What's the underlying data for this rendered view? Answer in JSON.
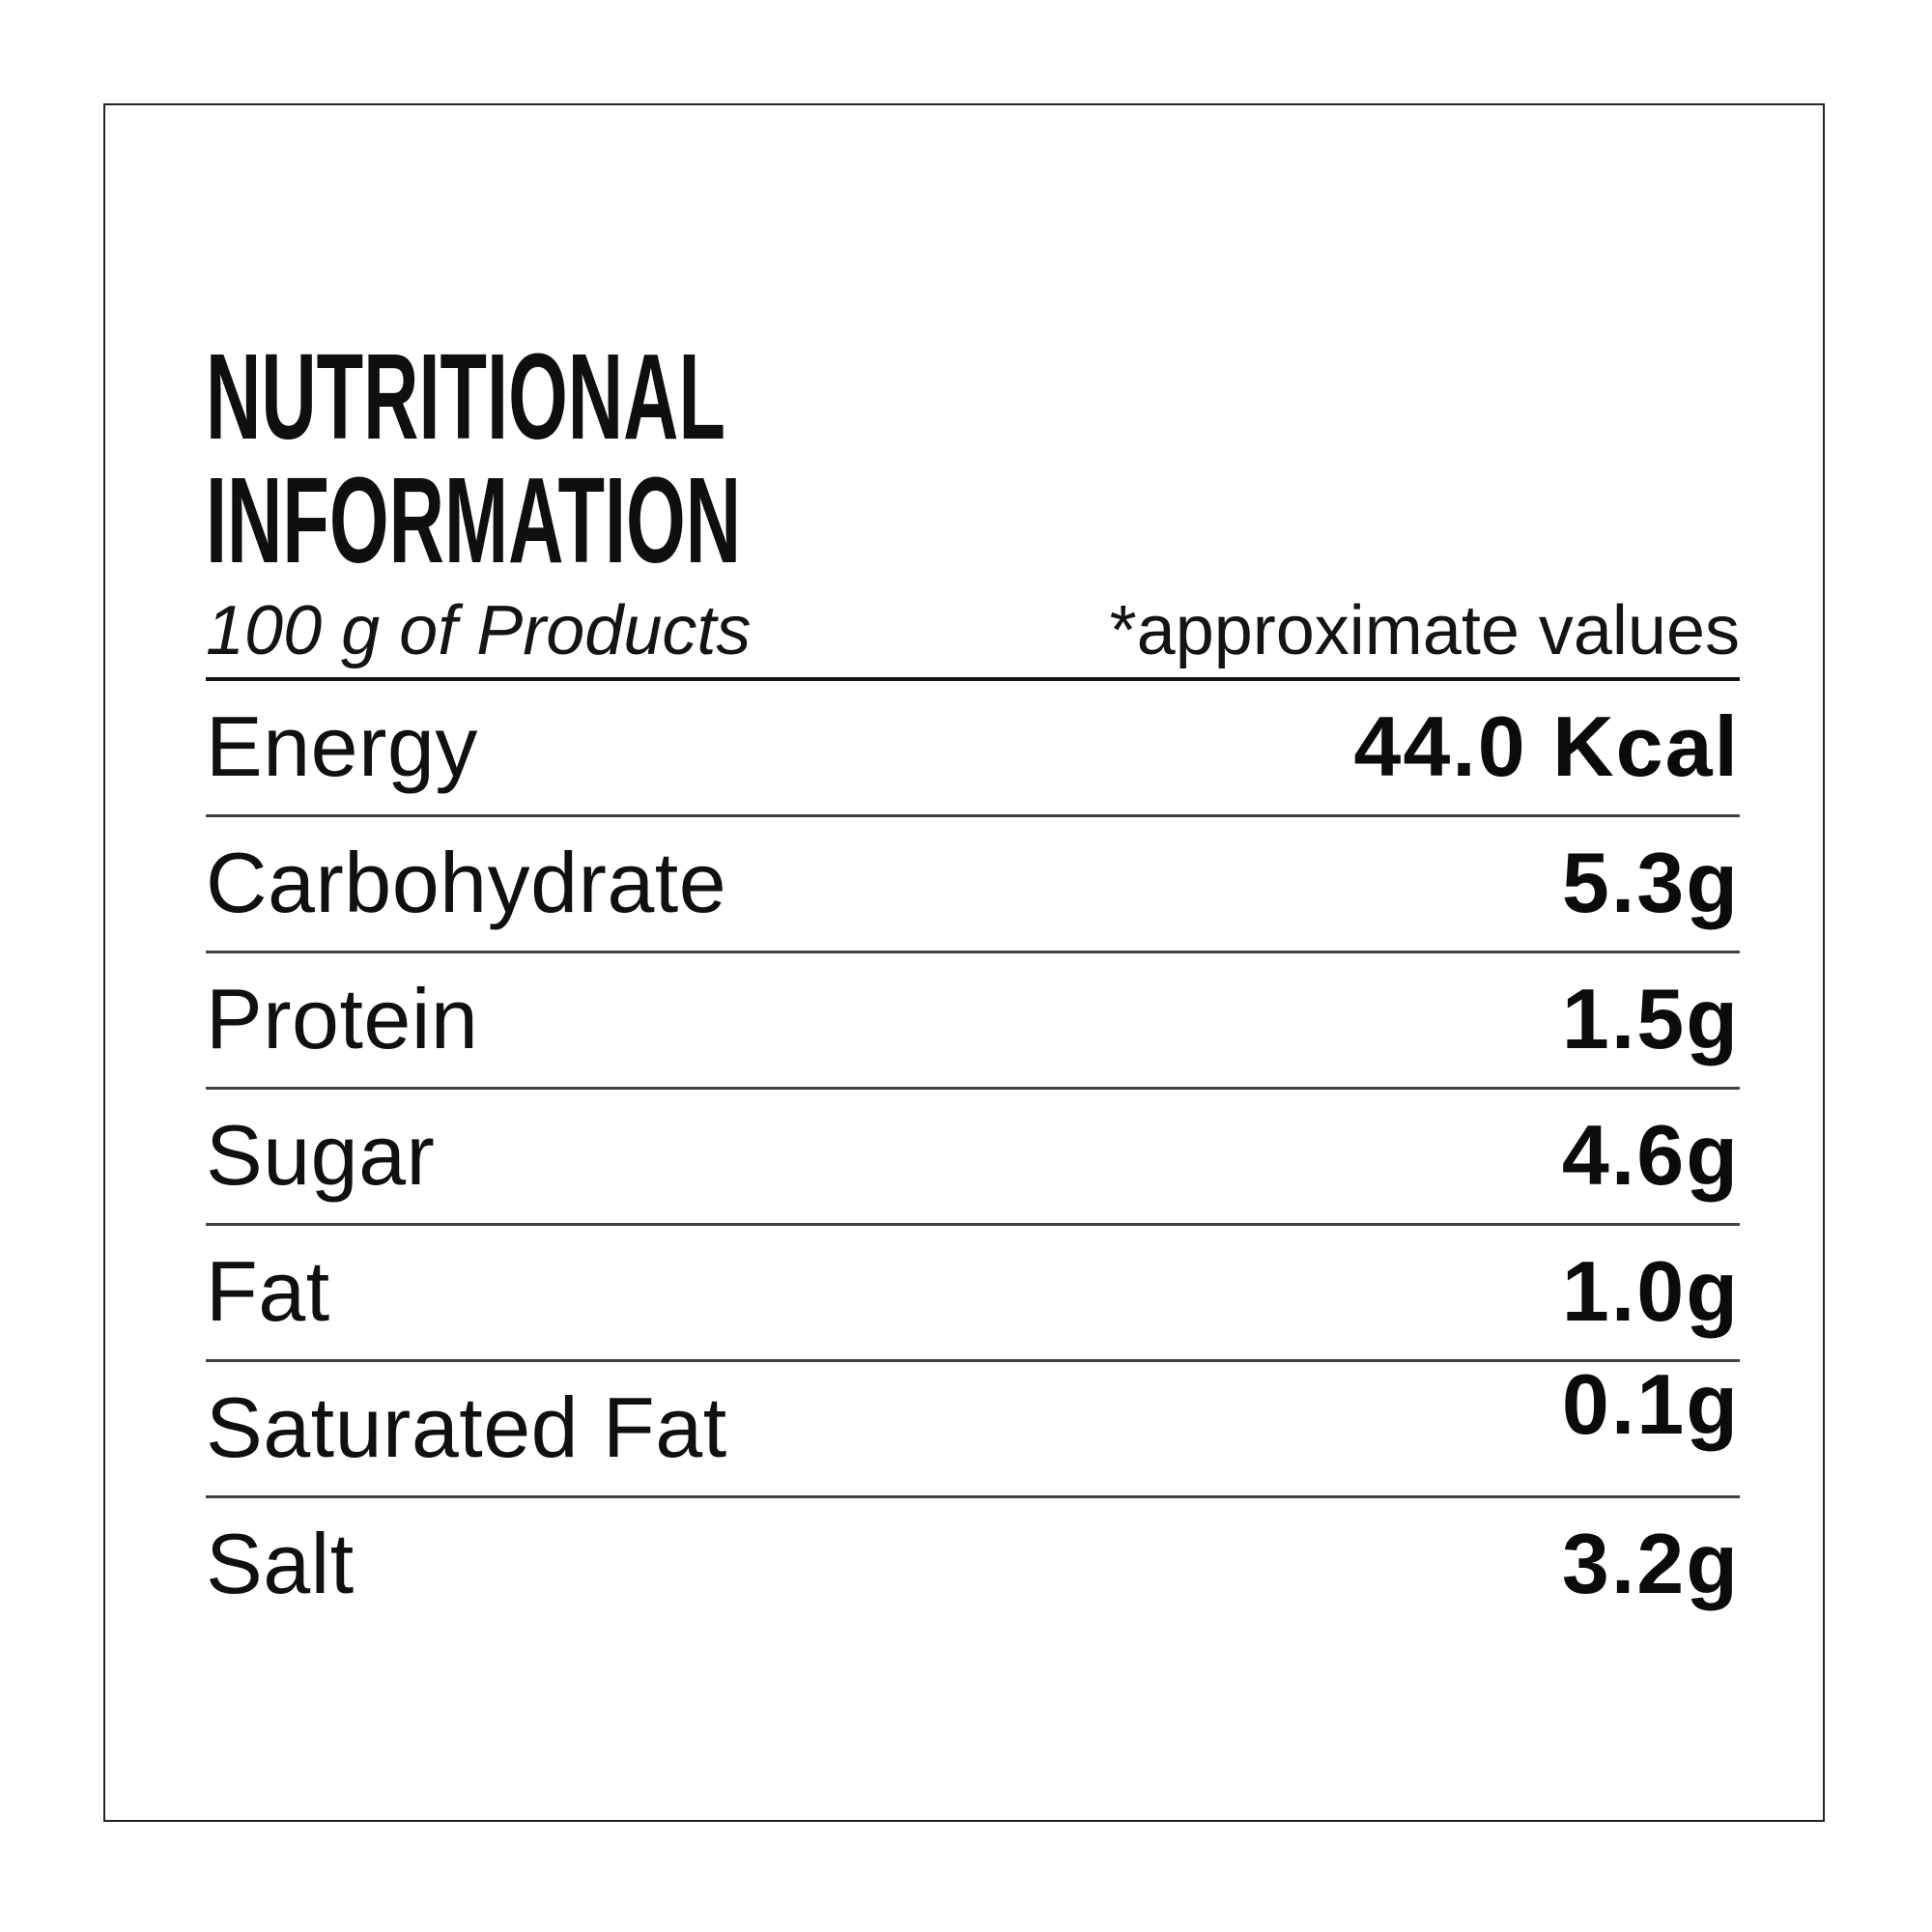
{
  "colors": {
    "background": "#ffffff",
    "text": "#111111",
    "border": "#242424",
    "header_line": "#141414",
    "row_line": "#404040"
  },
  "label": {
    "title_lines": [
      "NUTRITIONAL",
      "INFORMATION"
    ],
    "header": {
      "serving": "100 g of Products",
      "note": "*approximate values"
    },
    "rows": [
      {
        "label": "Energy",
        "value": "44.0 Kcal"
      },
      {
        "label": "Carbohydrate",
        "value": "5.3g"
      },
      {
        "label": "Protein",
        "value": "1.5g"
      },
      {
        "label": "Sugar",
        "value": "4.6g"
      },
      {
        "label": "Fat",
        "value": "1.0g"
      },
      {
        "label": "Saturated Fat",
        "value": "0.1g",
        "raised": true
      },
      {
        "label": "Salt",
        "value": "3.2g"
      }
    ]
  }
}
